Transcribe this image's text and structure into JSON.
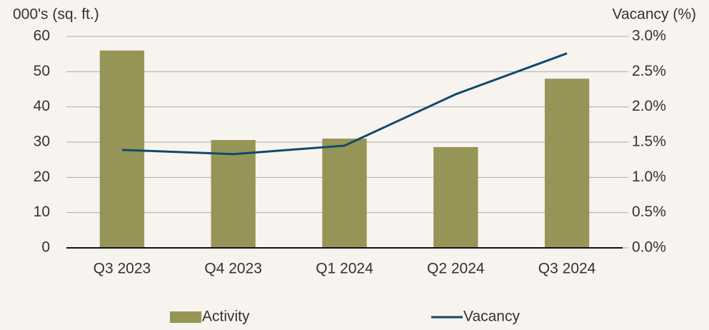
{
  "chart_data": {
    "type": "bar",
    "y_label": "000's (sq. ft.)",
    "y2_label": "Vacancy (%)",
    "categories": [
      "Q3 2023",
      "Q4 2023",
      "Q1 2024",
      "Q2 2024",
      "Q3 2024"
    ],
    "series": [
      {
        "name": "Activity",
        "type": "bar",
        "color": "#979457",
        "values": [
          56,
          30.6,
          31,
          28.6,
          48
        ]
      },
      {
        "name": "Vacancy",
        "type": "line",
        "axis": "y2",
        "color": "#0e4a6b",
        "values": [
          1.39,
          1.33,
          1.45,
          2.18,
          2.76
        ]
      }
    ],
    "ylim": [
      0,
      60
    ],
    "yticks": [
      0,
      10,
      20,
      30,
      40,
      50,
      60
    ],
    "y2lim": [
      0,
      3
    ],
    "y2ticks": [
      {
        "value": 0,
        "label": "0.0%"
      },
      {
        "value": 0.5,
        "label": "0.5%"
      },
      {
        "value": 1,
        "label": "1.0%"
      },
      {
        "value": 1.5,
        "label": "1.5%"
      },
      {
        "value": 2,
        "label": "2.0%"
      },
      {
        "value": 2.5,
        "label": "2.5%"
      },
      {
        "value": 3,
        "label": "3.0%"
      }
    ],
    "grid": true,
    "legend": "bottom"
  }
}
